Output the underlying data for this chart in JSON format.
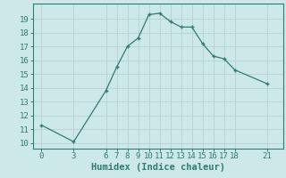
{
  "x": [
    0,
    3,
    6,
    7,
    8,
    9,
    10,
    11,
    12,
    13,
    14,
    15,
    16,
    17,
    18,
    21
  ],
  "y": [
    11.3,
    10.1,
    13.8,
    15.5,
    17.0,
    17.6,
    19.3,
    19.4,
    18.8,
    18.4,
    18.4,
    17.2,
    16.3,
    16.1,
    15.3,
    14.3
  ],
  "line_color": "#2e7d6e",
  "marker_color": "#2e7d6e",
  "bg_color": "#cce8e8",
  "grid_color": "#b8d4d4",
  "xlabel": "Humidex (Indice chaleur)",
  "xticks": [
    0,
    3,
    6,
    7,
    8,
    9,
    10,
    11,
    12,
    13,
    14,
    15,
    16,
    17,
    18,
    21
  ],
  "yticks": [
    10,
    11,
    12,
    13,
    14,
    15,
    16,
    17,
    18,
    19
  ],
  "xlim": [
    -0.8,
    22.5
  ],
  "ylim": [
    9.6,
    20.1
  ],
  "xlabel_fontsize": 7.5,
  "tick_fontsize": 6.5
}
